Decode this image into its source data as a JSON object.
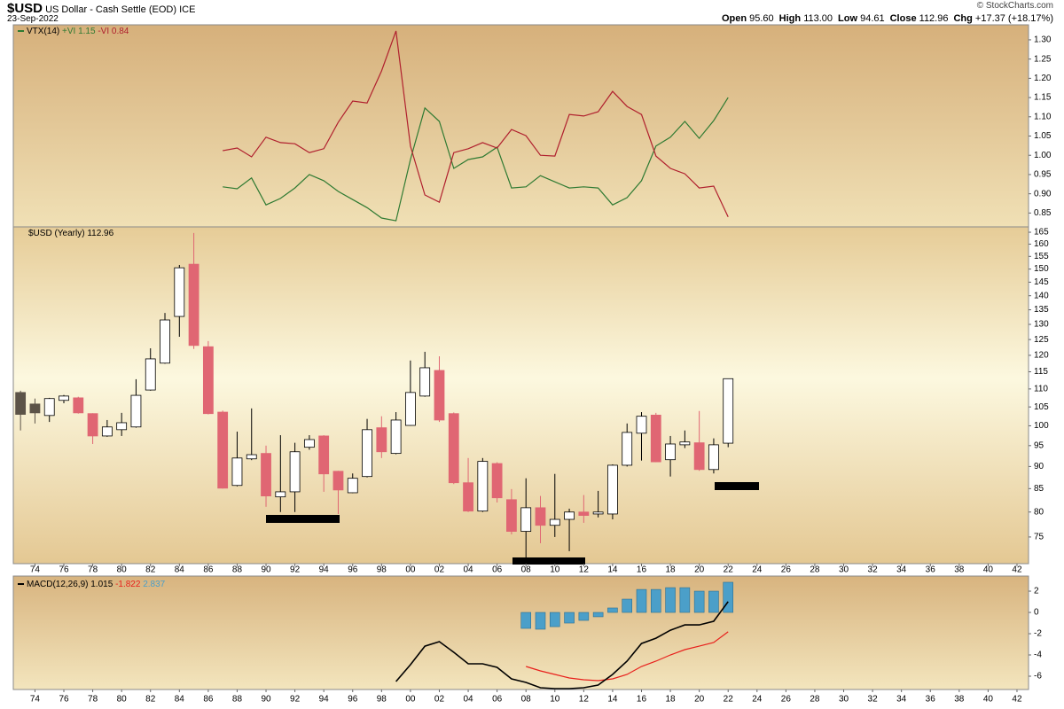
{
  "header": {
    "symbol": "$USD",
    "name": "US Dollar - Cash Settle (EOD)",
    "exchange": "ICE",
    "date": "23-Sep-2022",
    "credit": "© StockCharts.com",
    "quote": [
      {
        "label": "Open",
        "value": "95.60"
      },
      {
        "label": "High",
        "value": "113.00"
      },
      {
        "label": "Low",
        "value": "94.61"
      },
      {
        "label": "Close",
        "value": "112.96"
      },
      {
        "label": "Chg",
        "value": "+17.37 (+18.17%)"
      }
    ]
  },
  "chart_data": [
    {
      "type": "line",
      "legend_title": "VTX(14)",
      "x": [
        1987,
        1988,
        1989,
        1990,
        1991,
        1992,
        1993,
        1994,
        1995,
        1996,
        1997,
        1998,
        1999,
        2000,
        2001,
        2002,
        2003,
        2004,
        2005,
        2006,
        2007,
        2008,
        2009,
        2010,
        2011,
        2012,
        2013,
        2014,
        2015,
        2016,
        2017,
        2018,
        2019,
        2020,
        2021,
        2022
      ],
      "series": [
        {
          "name": "+VI",
          "color": "#2f7a32",
          "values": [
            0.918,
            0.913,
            0.941,
            0.871,
            0.888,
            0.915,
            0.95,
            0.934,
            0.906,
            0.885,
            0.864,
            0.837,
            0.83,
            0.989,
            1.123,
            1.088,
            0.966,
            0.989,
            0.996,
            1.021,
            0.915,
            0.918,
            0.947,
            0.931,
            0.915,
            0.918,
            0.915,
            0.871,
            0.89,
            0.934,
            1.024,
            1.047,
            1.088,
            1.044,
            1.09,
            1.15
          ]
        },
        {
          "name": "-VI",
          "color": "#b0202e",
          "values": [
            1.012,
            1.019,
            0.996,
            1.047,
            1.033,
            1.03,
            1.007,
            1.017,
            1.086,
            1.141,
            1.136,
            1.219,
            1.323,
            1.024,
            0.897,
            0.878,
            1.007,
            1.017,
            1.033,
            1.019,
            1.067,
            1.051,
            1.0,
            0.998,
            1.106,
            1.102,
            1.113,
            1.166,
            1.127,
            1.106,
            0.998,
            0.966,
            0.952,
            0.915,
            0.92,
            0.84
          ]
        }
      ],
      "xlim": [
        1972.5,
        2042.8
      ],
      "ylim": [
        0.814,
        1.339
      ],
      "yticks": [
        0.85,
        {
          "value": 0.9,
          "label": "0.90"
        },
        0.95,
        {
          "value": 1.0,
          "label": "1.00"
        },
        1.05,
        {
          "value": 1.1,
          "label": "1.10"
        },
        1.15,
        {
          "value": 1.2,
          "label": "1.20"
        },
        1.25,
        {
          "value": 1.3,
          "label": "1.30"
        }
      ]
    },
    {
      "type": "candlestick",
      "legend_title": "$USD (Yearly)",
      "log_scale": true,
      "x": [
        1973,
        1974,
        1975,
        1976,
        1977,
        1978,
        1979,
        1980,
        1981,
        1982,
        1983,
        1984,
        1985,
        1986,
        1987,
        1988,
        1989,
        1990,
        1991,
        1992,
        1993,
        1994,
        1995,
        1996,
        1997,
        1998,
        1999,
        2000,
        2001,
        2002,
        2003,
        2004,
        2005,
        2006,
        2007,
        2008,
        2009,
        2010,
        2011,
        2012,
        2013,
        2014,
        2015,
        2016,
        2017,
        2018,
        2019,
        2020,
        2021,
        2022
      ],
      "open": [
        109.0,
        105.8,
        102.7,
        106.8,
        107.5,
        103.2,
        97.4,
        99.0,
        99.7,
        109.7,
        117.6,
        132.7,
        151.9,
        122.7,
        103.6,
        85.7,
        91.8,
        93.1,
        83.2,
        84.3,
        94.6,
        97.4,
        88.9,
        84.1,
        87.7,
        99.5,
        93.1,
        100.1,
        108.0,
        115.4,
        103.2,
        86.3,
        80.2,
        90.7,
        82.6,
        76.1,
        80.9,
        77.3,
        78.5,
        80.0,
        79.6,
        79.6,
        90.3,
        98.1,
        102.8,
        91.6,
        95.2,
        95.7,
        89.3,
        95.6
      ],
      "high": [
        109.5,
        107.3,
        107.5,
        108.3,
        107.8,
        103.3,
        101.5,
        103.4,
        112.8,
        122.2,
        133.9,
        151.6,
        164.7,
        124.5,
        104.0,
        98.5,
        104.6,
        95.0,
        97.6,
        95.7,
        97.6,
        97.6,
        89.0,
        88.4,
        101.8,
        102.5,
        103.6,
        118.4,
        121.1,
        119.7,
        103.5,
        92.0,
        92.0,
        91.0,
        84.9,
        87.3,
        83.4,
        88.3,
        80.7,
        83.6,
        84.5,
        90.5,
        100.6,
        103.6,
        103.4,
        97.4,
        98.8,
        103.9,
        96.8,
        113.0
      ],
      "low": [
        98.8,
        100.6,
        101.0,
        106.0,
        103.2,
        95.4,
        97.2,
        97.4,
        99.5,
        109.5,
        117.4,
        125.9,
        122.0,
        103.0,
        85.0,
        85.5,
        91.5,
        81.1,
        80.0,
        80.0,
        94.0,
        84.3,
        79.6,
        84.0,
        87.5,
        92.0,
        92.9,
        100.0,
        107.8,
        101.0,
        86.0,
        80.0,
        80.0,
        82.0,
        75.5,
        70.7,
        73.8,
        75.0,
        72.3,
        77.8,
        78.9,
        78.5,
        90.0,
        91.4,
        91.0,
        87.7,
        94.4,
        89.0,
        88.4,
        94.61
      ],
      "close": [
        103.0,
        103.4,
        107.3,
        108.0,
        103.4,
        97.4,
        99.7,
        100.8,
        108.2,
        118.9,
        131.5,
        150.5,
        123.1,
        103.2,
        85.1,
        92.0,
        92.8,
        83.4,
        84.3,
        93.5,
        96.5,
        88.3,
        84.7,
        87.3,
        99.0,
        93.5,
        101.5,
        109.0,
        116.2,
        101.5,
        86.3,
        80.2,
        91.2,
        83.0,
        76.1,
        80.9,
        77.3,
        78.5,
        80.0,
        79.3,
        80.0,
        90.3,
        98.3,
        102.5,
        91.1,
        95.4,
        95.9,
        89.3,
        95.2,
        112.96
      ],
      "up_color": "#ffffff",
      "down_color": "#e06673",
      "neutral_color": "#5c5348",
      "xlim": [
        1972.5,
        2042.8
      ],
      "ylim": [
        70,
        167.3
      ],
      "yticks": [
        75,
        80,
        85,
        90,
        95,
        100,
        105,
        110,
        115,
        120,
        125,
        130,
        135,
        140,
        145,
        150,
        155,
        160,
        165
      ],
      "xticks": [
        {
          "value": 1974,
          "label": "74"
        },
        {
          "value": 1976,
          "label": "76"
        },
        {
          "value": 1978,
          "label": "78"
        },
        {
          "value": 1980,
          "label": "80"
        },
        {
          "value": 1982,
          "label": "82"
        },
        {
          "value": 1984,
          "label": "84"
        },
        {
          "value": 1986,
          "label": "86"
        },
        {
          "value": 1988,
          "label": "88"
        },
        {
          "value": 1990,
          "label": "90"
        },
        {
          "value": 1992,
          "label": "92"
        },
        {
          "value": 1994,
          "label": "94"
        },
        {
          "value": 1996,
          "label": "96"
        },
        {
          "value": 1998,
          "label": "98"
        },
        {
          "value": 2000,
          "label": "00"
        },
        {
          "value": 2002,
          "label": "02"
        },
        {
          "value": 2004,
          "label": "04"
        },
        {
          "value": 2006,
          "label": "06"
        },
        {
          "value": 2008,
          "label": "08"
        },
        {
          "value": 2010,
          "label": "10"
        },
        {
          "value": 2012,
          "label": "12"
        },
        {
          "value": 2014,
          "label": "14"
        },
        {
          "value": 2016,
          "label": "16"
        },
        {
          "value": 2018,
          "label": "18"
        },
        {
          "value": 2020,
          "label": "20"
        },
        {
          "value": 2022,
          "label": "22"
        },
        {
          "value": 2024,
          "label": "24"
        },
        {
          "value": 2026,
          "label": "26"
        },
        {
          "value": 2028,
          "label": "28"
        },
        {
          "value": 2030,
          "label": "30"
        },
        {
          "value": 2032,
          "label": "32"
        },
        {
          "value": 2034,
          "label": "34"
        },
        {
          "value": 2036,
          "label": "36"
        },
        {
          "value": 2038,
          "label": "38"
        },
        {
          "value": 2040,
          "label": "40"
        },
        {
          "value": 2042,
          "label": "42"
        }
      ]
    },
    {
      "type": "macd",
      "legend_title": "MACD(12,26,9)",
      "x": [
        1999,
        2000,
        2001,
        2002,
        2003,
        2004,
        2005,
        2006,
        2007,
        2008,
        2009,
        2010,
        2011,
        2012,
        2013,
        2014,
        2015,
        2016,
        2017,
        2018,
        2019,
        2020,
        2021,
        2022
      ],
      "macd": {
        "color": "#000000",
        "values": [
          -6.5,
          -4.92,
          -3.17,
          -2.75,
          -3.75,
          -4.83,
          -4.83,
          -5.17,
          -6.25,
          -6.58,
          -7.08,
          -7.17,
          -7.17,
          -7.08,
          -6.83,
          -5.83,
          -4.58,
          -2.92,
          -2.42,
          -1.67,
          -1.17,
          -1.17,
          -0.83,
          1.015
        ]
      },
      "signal": {
        "color": "#e8201c",
        "values": [
          null,
          null,
          null,
          null,
          null,
          null,
          null,
          null,
          null,
          -5.08,
          -5.5,
          -5.83,
          -6.17,
          -6.33,
          -6.42,
          -6.25,
          -5.83,
          -5.08,
          -4.58,
          -4.0,
          -3.5,
          -3.17,
          -2.83,
          -1.822
        ]
      },
      "histogram": {
        "color": "#4b9fc9",
        "values": [
          null,
          null,
          null,
          null,
          null,
          null,
          null,
          null,
          null,
          -1.5,
          -1.58,
          -1.34,
          -1.0,
          -0.75,
          -0.41,
          0.42,
          1.25,
          2.16,
          2.16,
          2.33,
          2.33,
          2.0,
          2.0,
          2.837
        ]
      },
      "xlim": [
        1972.5,
        2042.8
      ],
      "ylim": [
        -7.25,
        3.42
      ],
      "yticks": [
        -6,
        -4,
        -2,
        0,
        2
      ],
      "xticks": [
        {
          "value": 1974,
          "label": "74"
        },
        {
          "value": 1976,
          "label": "76"
        },
        {
          "value": 1978,
          "label": "78"
        },
        {
          "value": 1980,
          "label": "80"
        },
        {
          "value": 1982,
          "label": "82"
        },
        {
          "value": 1984,
          "label": "84"
        },
        {
          "value": 1986,
          "label": "86"
        },
        {
          "value": 1988,
          "label": "88"
        },
        {
          "value": 1990,
          "label": "90"
        },
        {
          "value": 1992,
          "label": "92"
        },
        {
          "value": 1994,
          "label": "94"
        },
        {
          "value": 1996,
          "label": "96"
        },
        {
          "value": 1998,
          "label": "98"
        },
        {
          "value": 2000,
          "label": "00"
        },
        {
          "value": 2002,
          "label": "02"
        },
        {
          "value": 2004,
          "label": "04"
        },
        {
          "value": 2006,
          "label": "06"
        },
        {
          "value": 2008,
          "label": "08"
        },
        {
          "value": 2010,
          "label": "10"
        },
        {
          "value": 2012,
          "label": "12"
        },
        {
          "value": 2014,
          "label": "14"
        },
        {
          "value": 2016,
          "label": "16"
        },
        {
          "value": 2018,
          "label": "18"
        },
        {
          "value": 2020,
          "label": "20"
        },
        {
          "value": 2022,
          "label": "22"
        },
        {
          "value": 2024,
          "label": "24"
        },
        {
          "value": 2026,
          "label": "26"
        },
        {
          "value": 2028,
          "label": "28"
        },
        {
          "value": 2030,
          "label": "30"
        },
        {
          "value": 2032,
          "label": "32"
        },
        {
          "value": 2034,
          "label": "34"
        },
        {
          "value": 2036,
          "label": "36"
        },
        {
          "value": 2038,
          "label": "38"
        },
        {
          "value": 2040,
          "label": "40"
        },
        {
          "value": 2042,
          "label": "42"
        }
      ]
    }
  ]
}
